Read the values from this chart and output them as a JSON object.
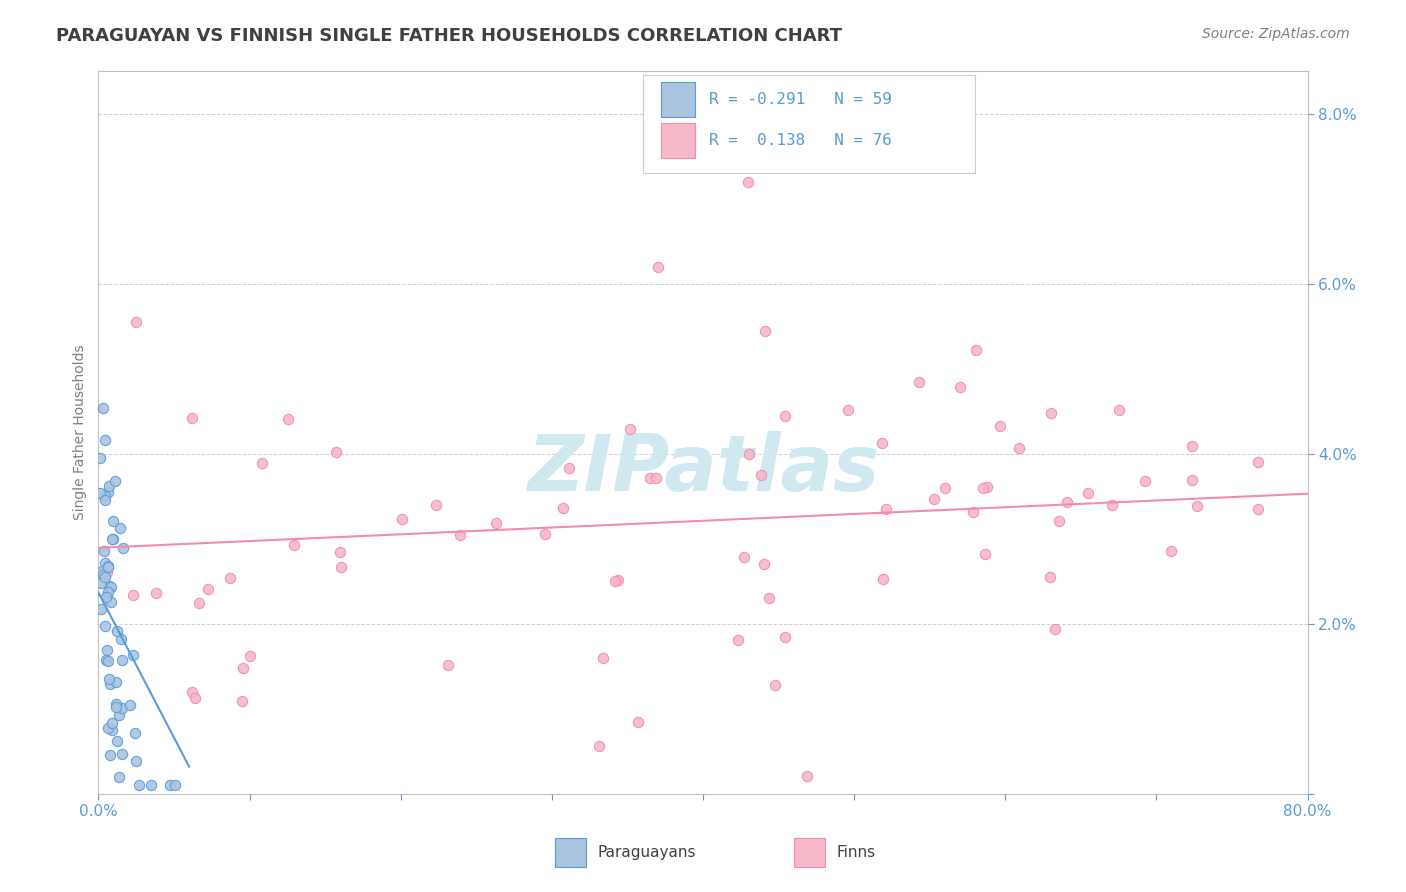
{
  "title": "PARAGUAYAN VS FINNISH SINGLE FATHER HOUSEHOLDS CORRELATION CHART",
  "source": "Source: ZipAtlas.com",
  "ylabel": "Single Father Households",
  "watermark": "ZIPatlas",
  "xlim": [
    0.0,
    0.8
  ],
  "ylim": [
    0.0,
    0.085
  ],
  "paraguayan_color": "#aac4e0",
  "finnish_color": "#f4b8c8",
  "paraguayan_line_color": "#5b9bd5",
  "finnish_line_color": "#f48bab",
  "background_color": "#ffffff",
  "watermark_color": "#d0e8f0",
  "title_color": "#404040",
  "axis_color": "#808080",
  "tick_color": "#5b9bd5",
  "legend_color": "#5b9bd5"
}
